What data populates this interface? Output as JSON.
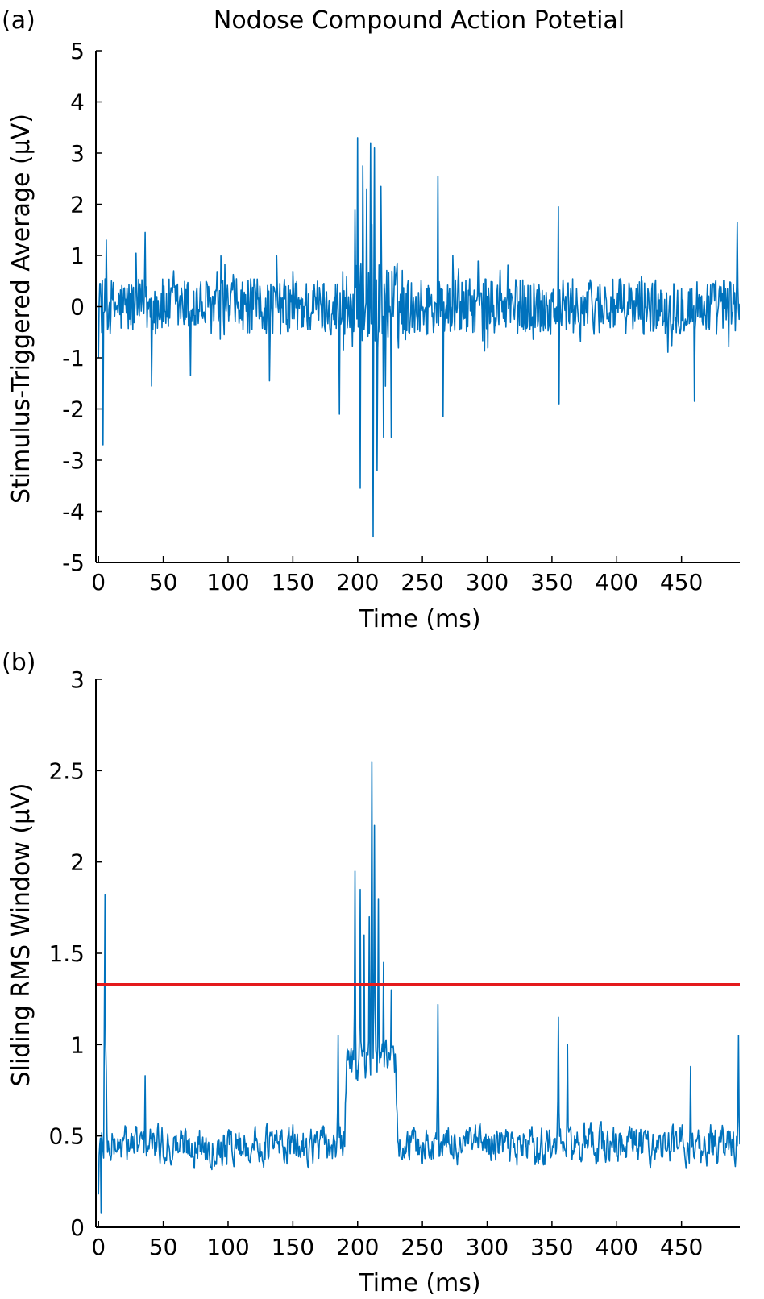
{
  "colors": {
    "signal": "#0072BD",
    "threshold": "#E41A1C",
    "axis": "#000000"
  },
  "chart_data": [
    {
      "panel_label": "(a)",
      "type": "line",
      "title": "Nodose Compound Action Potetial",
      "xlabel": "Time (ms)",
      "ylabel": "Stimulus-Triggered Average (µV)",
      "xlim": [
        -2,
        495
      ],
      "ylim": [
        -5,
        5
      ],
      "xticks": [
        0,
        50,
        100,
        150,
        200,
        250,
        300,
        350,
        400,
        450
      ],
      "xtick_labels": [
        "0",
        "50",
        "100",
        "150",
        "200",
        "250",
        "300",
        "350",
        "400",
        "450"
      ],
      "yticks": [
        -5,
        -4,
        -3,
        -2,
        -1,
        0,
        1,
        2,
        3,
        4,
        5
      ],
      "ytick_labels": [
        "-5",
        "-4",
        "-3",
        "-2",
        "-1",
        "0",
        "1",
        "2",
        "3",
        "4",
        "5"
      ],
      "grid": false,
      "series": [
        {
          "values_description_free": true,
          "x_start": 0,
          "x_step": 0.5,
          "baseline_noise_amplitude": 0.55,
          "events": [
            {
              "x": 1.5,
              "y": 0.45
            },
            {
              "x": 3.5,
              "y": -2.7
            },
            {
              "x": 6,
              "y": 1.3
            },
            {
              "x": 36,
              "y": 1.45
            },
            {
              "x": 41,
              "y": -1.55
            },
            {
              "x": 71,
              "y": -1.35
            },
            {
              "x": 132,
              "y": -1.45
            },
            {
              "x": 186,
              "y": -2.1
            },
            {
              "x": 198,
              "y": 1.9
            },
            {
              "x": 200,
              "y": 3.3
            },
            {
              "x": 202,
              "y": -3.55
            },
            {
              "x": 204,
              "y": 2.75
            },
            {
              "x": 207,
              "y": 2.3
            },
            {
              "x": 210,
              "y": 3.2
            },
            {
              "x": 212,
              "y": -4.5
            },
            {
              "x": 213,
              "y": 3.1
            },
            {
              "x": 215,
              "y": -3.2
            },
            {
              "x": 218,
              "y": 2.35
            },
            {
              "x": 220,
              "y": -2.55
            },
            {
              "x": 226,
              "y": -2.55
            },
            {
              "x": 262,
              "y": 2.55
            },
            {
              "x": 266,
              "y": -2.15
            },
            {
              "x": 355,
              "y": 1.95
            },
            {
              "x": 355.5,
              "y": -1.9
            },
            {
              "x": 460,
              "y": -1.85
            },
            {
              "x": 493,
              "y": 1.65
            }
          ]
        }
      ]
    },
    {
      "panel_label": "(b)",
      "type": "line",
      "title": "",
      "xlabel": "Time (ms)",
      "ylabel": "Sliding RMS Window (µV)",
      "xlim": [
        -2,
        495
      ],
      "ylim": [
        0,
        3
      ],
      "xticks": [
        0,
        50,
        100,
        150,
        200,
        250,
        300,
        350,
        400,
        450
      ],
      "xtick_labels": [
        "0",
        "50",
        "100",
        "150",
        "200",
        "250",
        "300",
        "350",
        "400",
        "450"
      ],
      "yticks": [
        0,
        0.5,
        1,
        1.5,
        2,
        2.5,
        3
      ],
      "ytick_labels": [
        "0",
        "0.5",
        "1",
        "1.5",
        "2",
        "2.5",
        "3"
      ],
      "grid": false,
      "threshold": 1.33,
      "series": [
        {
          "x_start": 0,
          "x_step": 0.5,
          "baseline": 0.45,
          "events": [
            {
              "x": 0,
              "y": 0.18
            },
            {
              "x": 2,
              "y": 0.08
            },
            {
              "x": 5,
              "y": 1.82
            },
            {
              "x": 6,
              "y": 0.85
            },
            {
              "x": 36,
              "y": 0.83
            },
            {
              "x": 185,
              "y": 1.05
            },
            {
              "x": 198,
              "y": 1.95
            },
            {
              "x": 202,
              "y": 1.85
            },
            {
              "x": 205,
              "y": 1.6
            },
            {
              "x": 209,
              "y": 1.7
            },
            {
              "x": 211,
              "y": 2.55
            },
            {
              "x": 213,
              "y": 2.2
            },
            {
              "x": 216,
              "y": 1.8
            },
            {
              "x": 220,
              "y": 1.45
            },
            {
              "x": 226,
              "y": 1.3
            },
            {
              "x": 262,
              "y": 1.22
            },
            {
              "x": 355,
              "y": 1.15
            },
            {
              "x": 362,
              "y": 1.0
            },
            {
              "x": 457,
              "y": 0.88
            },
            {
              "x": 494,
              "y": 1.05
            }
          ]
        }
      ]
    }
  ]
}
